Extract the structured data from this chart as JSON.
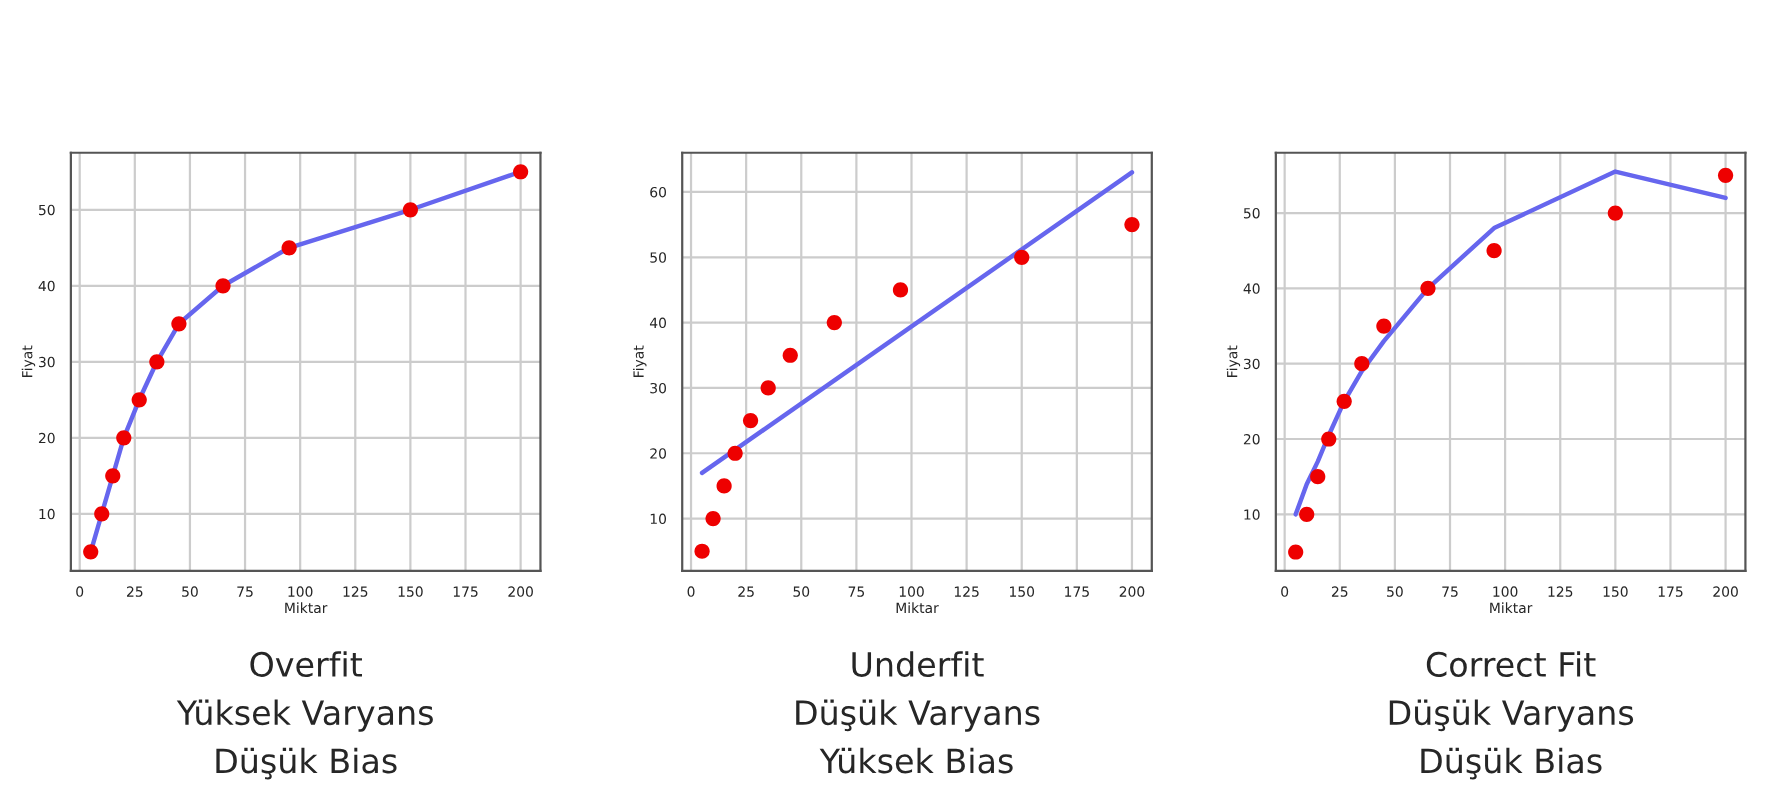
{
  "chart_data": [
    {
      "type": "scatter",
      "title": "Overfit",
      "annotations": [
        "Yüksek Varyans",
        "Düşük Bias"
      ],
      "xlabel": "Miktar",
      "ylabel": "Fiyat",
      "xlim": [
        -4,
        209
      ],
      "ylim": [
        2.5,
        57.5
      ],
      "xticks": [
        0,
        25,
        50,
        75,
        100,
        125,
        150,
        175,
        200
      ],
      "yticks": [
        10,
        20,
        30,
        40,
        50
      ],
      "grid": true,
      "series": [
        {
          "type": "line",
          "marker": "none",
          "color": "#6666ee",
          "x": [
            5,
            10,
            15,
            20,
            27,
            35,
            45,
            65,
            95,
            150,
            200
          ],
          "values": [
            5,
            10,
            15,
            20,
            25,
            30,
            35,
            40,
            45,
            50,
            55
          ]
        },
        {
          "marker": "circle",
          "color": "#ee0000",
          "x": [
            5,
            10,
            15,
            20,
            27,
            35,
            45,
            65,
            95,
            150,
            200
          ],
          "values": [
            5,
            10,
            15,
            20,
            25,
            30,
            35,
            40,
            45,
            50,
            55
          ]
        }
      ]
    },
    {
      "type": "scatter",
      "title": "Underfit",
      "annotations": [
        "Düşük Varyans",
        "Yüksek Bias"
      ],
      "xlabel": "Miktar",
      "ylabel": "Fiyat",
      "xlim": [
        -4,
        209
      ],
      "ylim": [
        2,
        66
      ],
      "xticks": [
        0,
        25,
        50,
        75,
        100,
        125,
        150,
        175,
        200
      ],
      "yticks": [
        10,
        20,
        30,
        40,
        50,
        60
      ],
      "grid": true,
      "series": [
        {
          "type": "line",
          "marker": "none",
          "color": "#6666ee",
          "x": [
            5,
            200
          ],
          "values": [
            17,
            63
          ]
        },
        {
          "marker": "circle",
          "color": "#ee0000",
          "x": [
            5,
            10,
            15,
            20,
            27,
            35,
            45,
            65,
            95,
            150,
            200
          ],
          "values": [
            5,
            10,
            15,
            20,
            25,
            30,
            35,
            40,
            45,
            50,
            55
          ]
        }
      ]
    },
    {
      "type": "scatter",
      "title": "Correct Fit",
      "annotations": [
        "Düşük Varyans",
        "Düşük Bias"
      ],
      "xlabel": "Miktar",
      "ylabel": "Fiyat",
      "xlim": [
        -4,
        209
      ],
      "ylim": [
        2.5,
        58
      ],
      "xticks": [
        0,
        25,
        50,
        75,
        100,
        125,
        150,
        175,
        200
      ],
      "yticks": [
        10,
        20,
        30,
        40,
        50
      ],
      "grid": true,
      "series": [
        {
          "type": "line",
          "marker": "none",
          "color": "#6666ee",
          "x": [
            5,
            10,
            15,
            20,
            27,
            35,
            45,
            65,
            95,
            150,
            200
          ],
          "values": [
            10,
            14,
            17,
            20.5,
            25,
            29,
            33,
            40,
            48,
            55.5,
            52
          ]
        },
        {
          "marker": "circle",
          "color": "#ee0000",
          "x": [
            5,
            10,
            15,
            20,
            27,
            35,
            45,
            65,
            95,
            150,
            200
          ],
          "values": [
            5,
            10,
            15,
            20,
            25,
            30,
            35,
            40,
            45,
            50,
            55
          ]
        }
      ]
    }
  ]
}
